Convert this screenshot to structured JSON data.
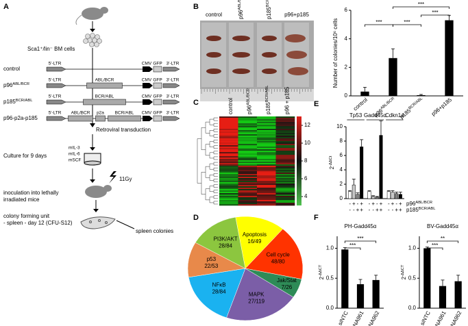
{
  "panel_labels": [
    "A",
    "B",
    "C",
    "D",
    "E",
    "F"
  ],
  "diagram": {
    "cells_label": "Sca1⁺/lin⁻ BM cells",
    "constructs": [
      {
        "name": {
          "text": "control"
        },
        "parts": [
          "5'-LTR",
          "CMV",
          "GFP",
          "3'-LTR"
        ]
      },
      {
        "name": {
          "text": "p96",
          "sup": "ABL/BCR"
        },
        "parts": [
          "5'-LTR",
          "ABL/BCR",
          "CMV",
          "GFP",
          "3'-LTR"
        ]
      },
      {
        "name": {
          "text": "p185",
          "sup": "BCR/ABL"
        },
        "parts": [
          "5'-LTR",
          "BCR/ABL",
          "CMV",
          "GFP",
          "3'-LTR"
        ]
      },
      {
        "name": {
          "text": "p96-p2a-p185"
        },
        "parts": [
          "5'-LTR",
          "ABL/BCR",
          "p2a",
          "BCR/ABL",
          "CMV",
          "GFP",
          "3'-LTR"
        ]
      }
    ],
    "transduction": "Retroviral transduction",
    "culture": "Culture for 9 days",
    "cytokines": [
      "mIL-3",
      "mIL-6",
      "mSCF"
    ],
    "irradiation": "11Gy",
    "inoculation": [
      "inoculation into lethally",
      "irradiated mice"
    ],
    "cfu": [
      "colony forming unit",
      "- spleen - day 12 (CFU-S12)"
    ],
    "spleen_label": "spleen colonies"
  },
  "chart_data": [
    {
      "type": "bar",
      "ylabel": "Number of colonies/10⁶ cells",
      "categories": [
        {
          "text": "control"
        },
        {
          "text": "p96",
          "sup": "ABL/BCR"
        },
        {
          "text": "p185",
          "sup": "BCR/ABL"
        },
        {
          "text": "p96+p185"
        }
      ],
      "values": [
        0.3,
        2.65,
        0.05,
        5.3
      ],
      "errors": [
        0.3,
        0.65,
        0.05,
        0.35
      ],
      "color": "#000000",
      "ylim": [
        0,
        6
      ],
      "yticks": [
        0,
        2,
        4,
        6
      ],
      "significance": [
        "***",
        "***",
        "***",
        "***"
      ]
    },
    {
      "type": "heatmap",
      "columns": [
        {
          "text": "control"
        },
        {
          "text": "p96",
          "sup": "ABL/BCR"
        },
        {
          "text": "p185",
          "sup": "BCR/ABL"
        },
        {
          "text": "p96 + p185"
        }
      ],
      "colorbar_lim": [
        3,
        13
      ],
      "colorbar_ticks": [
        4,
        6,
        8,
        10,
        12
      ]
    },
    {
      "type": "pie",
      "labels": [
        "Apoptosis",
        "Cell cycle",
        "Jak/Stat",
        "MAPK",
        "NFκB",
        "p53",
        "PI3K/AKT"
      ],
      "sublabels": [
        "16/49",
        "48/80",
        "7/26",
        "27/119",
        "28/84",
        "22/53",
        "28/84"
      ],
      "values": [
        14,
        17,
        6,
        21,
        17,
        11,
        14
      ],
      "colors": [
        "#ffff00",
        "#ff3300",
        "#2e8b57",
        "#7b5ea7",
        "#1ab2f0",
        "#e8894a",
        "#8cc63f"
      ]
    },
    {
      "type": "grouped_bar",
      "ylabel": {
        "text": "2",
        "sup": "-ΔΔCt"
      },
      "categories": [
        "Tp53",
        "Gadd45α",
        "Cdkn1a"
      ],
      "series": [
        {
          "color": "#ffffff",
          "values": [
            1,
            1,
            1
          ],
          "errors": [
            0.1,
            0.1,
            0.1
          ]
        },
        {
          "color": "#c8c8c8",
          "values": [
            1.9,
            0.3,
            0.9
          ],
          "errors": [
            0.8,
            0.1,
            0.2
          ]
        },
        {
          "color": "#808080",
          "values": [
            0.6,
            0.2,
            0.7
          ],
          "errors": [
            0.2,
            0.1,
            0.2
          ]
        },
        {
          "color": "#000000",
          "values": [
            7.2,
            8.8,
            0.6
          ],
          "errors": [
            1.0,
            2.0,
            0.3
          ]
        }
      ],
      "treatments": [
        {
          "name": {
            "text": "p96",
            "sup": "ABL/BCR"
          },
          "signs": [
            "-",
            "+",
            "-",
            "+"
          ]
        },
        {
          "name": {
            "text": "p185",
            "sup": "BCR/ABL"
          },
          "signs": [
            "-",
            "-",
            "+",
            "+"
          ]
        }
      ],
      "ylim": [
        0,
        10
      ],
      "yticks": [
        0,
        2,
        4,
        6,
        8,
        10
      ]
    },
    {
      "type": "bar",
      "title": "PH-Gadd45α",
      "ylabel": {
        "text": "2",
        "sup": "-ΔΔCT"
      },
      "categories": [
        "siNTC",
        "siRNA961",
        "siRNA962"
      ],
      "values": [
        0.98,
        0.4,
        0.47
      ],
      "errors": [
        0.03,
        0.08,
        0.08
      ],
      "color": "#000000",
      "ylim": [
        0,
        1.2
      ],
      "yticks": [
        {
          "value": 0,
          "label": "0.0"
        },
        0.5,
        {
          "value": 1,
          "label": "1.0"
        }
      ],
      "significance": [
        "***",
        "***"
      ]
    },
    {
      "type": "bar",
      "title": "BV-Gadd45α",
      "ylabel": {
        "text": "2",
        "sup": "-ΔΔCT"
      },
      "categories": [
        "siNTC",
        "siRNA961",
        "siRNA962"
      ],
      "values": [
        1.0,
        0.37,
        0.45
      ],
      "errors": [
        0.02,
        0.1,
        0.1
      ],
      "color": "#000000",
      "ylim": [
        0,
        1.2
      ],
      "yticks": [
        {
          "value": 0,
          "label": "0.0"
        },
        0.5,
        {
          "value": 1,
          "label": "1.0"
        }
      ],
      "significance": [
        "***",
        "**"
      ]
    }
  ]
}
